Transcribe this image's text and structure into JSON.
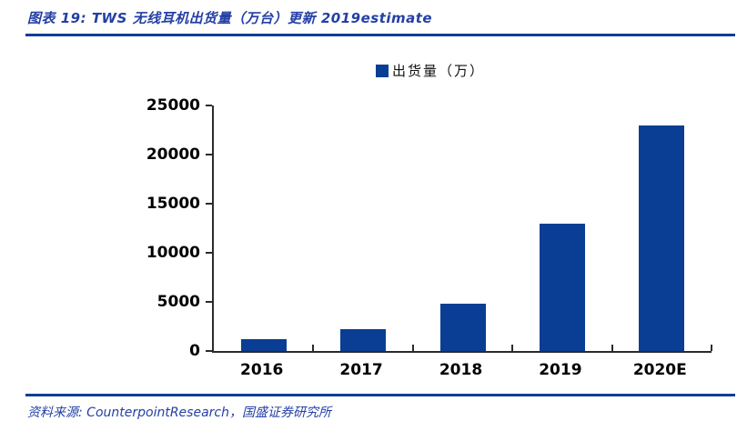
{
  "header": {
    "title": "图表 19: TWS 无线耳机出货量（万台）更新 2019estimate"
  },
  "legend": {
    "label": "出货量（万）"
  },
  "chart_data": {
    "type": "bar",
    "title": "TWS 无线耳机出货量（万台）更新 2019estimate",
    "categories": [
      "2016",
      "2017",
      "2018",
      "2019",
      "2020E"
    ],
    "values": [
      1200,
      2200,
      4800,
      13000,
      23000
    ],
    "series_name": "出货量（万）",
    "xlabel": "",
    "ylabel": "",
    "ylim": [
      0,
      25000
    ],
    "ytick_step": 5000,
    "ytick_labels": [
      "0",
      "5000",
      "10000",
      "15000",
      "20000",
      "25000"
    ],
    "grid": false,
    "legend_position": "top-center"
  },
  "footer": {
    "source_text": "资料来源: CounterpointResearch，国盛证券研究所"
  },
  "colors": {
    "bar": "#0a3e94",
    "rule": "#0c3e92",
    "heading_text": "#2440a6",
    "footer_text": "#2440a6",
    "axis": "#2b2b2b",
    "tick_text": "#000000"
  }
}
